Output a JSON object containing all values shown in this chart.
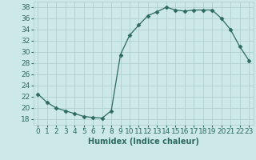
{
  "x": [
    0,
    1,
    2,
    3,
    4,
    5,
    6,
    7,
    8,
    9,
    10,
    11,
    12,
    13,
    14,
    15,
    16,
    17,
    18,
    19,
    20,
    21,
    22,
    23
  ],
  "y": [
    22.5,
    21.0,
    20.0,
    19.5,
    19.0,
    18.5,
    18.3,
    18.2,
    19.5,
    29.5,
    33.0,
    34.8,
    36.5,
    37.2,
    38.0,
    37.5,
    37.3,
    37.5,
    37.5,
    37.5,
    36.0,
    34.0,
    31.0,
    28.5
  ],
  "line_color": "#2e6b5e",
  "marker": "D",
  "marker_size": 2.5,
  "background_color": "#cce8e8",
  "grid_color": "#aacccc",
  "xlabel": "Humidex (Indice chaleur)",
  "xlim": [
    -0.5,
    23.5
  ],
  "ylim": [
    17,
    39
  ],
  "yticks": [
    18,
    20,
    22,
    24,
    26,
    28,
    30,
    32,
    34,
    36,
    38
  ],
  "xticks": [
    0,
    1,
    2,
    3,
    4,
    5,
    6,
    7,
    8,
    9,
    10,
    11,
    12,
    13,
    14,
    15,
    16,
    17,
    18,
    19,
    20,
    21,
    22,
    23
  ],
  "xlabel_fontsize": 7,
  "tick_fontsize": 6.5
}
